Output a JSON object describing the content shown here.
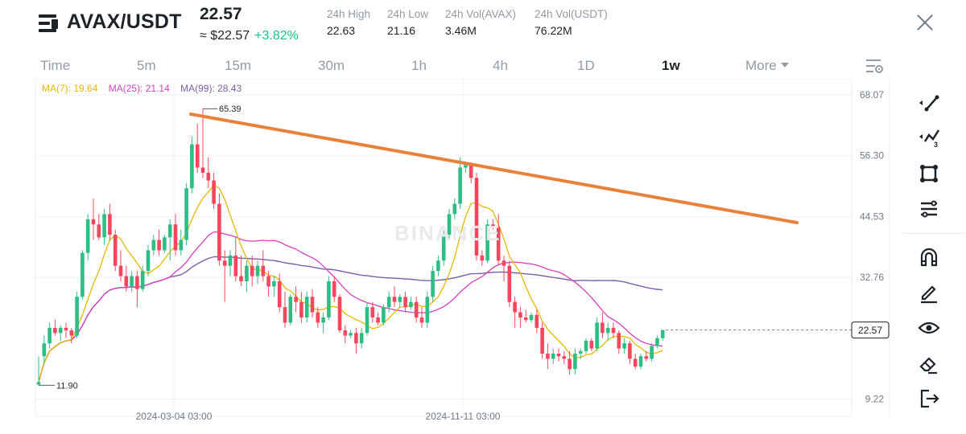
{
  "header": {
    "symbol": "AVAX/USDT",
    "last_price": "22.57",
    "approx_usd": "≈ $22.57",
    "change_pct": "+3.82%",
    "stats": [
      {
        "label": "24h High",
        "value": "22.63"
      },
      {
        "label": "24h Low",
        "value": "21.16"
      },
      {
        "label": "24h Vol(AVAX)",
        "value": "3.46M"
      },
      {
        "label": "24h Vol(USDT)",
        "value": "76.22M"
      }
    ]
  },
  "timeframes": [
    "Time",
    "5m",
    "15m",
    "30m",
    "1h",
    "4h",
    "1D",
    "1w",
    "More"
  ],
  "active_timeframe": "1w",
  "ma_legend": [
    {
      "label": "MA(7): 19.64",
      "color": "#e6b800"
    },
    {
      "label": "MA(25): 21.14",
      "color": "#d63fbf"
    },
    {
      "label": "MA(99): 28.43",
      "color": "#7b5ea7"
    }
  ],
  "toolbar": [
    "line-tool-icon",
    "trend-tool-icon",
    "shape-tool-icon",
    "fib-tool-icon",
    "magnet-icon",
    "pencil-icon",
    "eye-icon",
    "eraser-icon",
    "exit-icon"
  ],
  "watermark": "BINANCE",
  "colors": {
    "up": "#2ebd85",
    "down": "#f6465d",
    "trendline": "#e8823a"
  },
  "chart_data": {
    "type": "candlestick",
    "y_ticks": [
      "68.07",
      "56.30",
      "44.53",
      "32.76",
      "22.57",
      "9.22"
    ],
    "ylim": [
      9.22,
      68.07
    ],
    "x_ticks": [
      "2024-03-04 03:00",
      "2024-11-11 03:00"
    ],
    "current_price": "22.57",
    "high_label": "65.39",
    "low_label": "11.90",
    "candles": [
      [
        12.0,
        17.5,
        11.9,
        12.5
      ],
      [
        17.5,
        21.5,
        16.0,
        20.0
      ],
      [
        20.0,
        24.0,
        19.0,
        23.0
      ],
      [
        23.0,
        24.5,
        21.5,
        22.0
      ],
      [
        22.0,
        23.5,
        20.5,
        23.0
      ],
      [
        23.0,
        24.0,
        21.0,
        22.5
      ],
      [
        22.5,
        23.0,
        20.0,
        21.5
      ],
      [
        21.5,
        30.0,
        21.0,
        29.0
      ],
      [
        29.0,
        38.0,
        28.5,
        37.5
      ],
      [
        37.5,
        45.0,
        36.0,
        44.0
      ],
      [
        44.0,
        48.0,
        40.0,
        43.0
      ],
      [
        43.0,
        45.0,
        40.0,
        40.5
      ],
      [
        40.5,
        46.0,
        39.0,
        45.0
      ],
      [
        45.0,
        47.0,
        40.0,
        41.0
      ],
      [
        41.0,
        42.0,
        34.0,
        35.0
      ],
      [
        35.0,
        38.0,
        32.0,
        33.0
      ],
      [
        33.0,
        35.0,
        30.0,
        31.0
      ],
      [
        31.0,
        34.0,
        30.0,
        33.0
      ],
      [
        33.0,
        34.0,
        27.0,
        30.5
      ],
      [
        30.5,
        35.0,
        30.0,
        34.0
      ],
      [
        34.0,
        39.0,
        33.0,
        38.0
      ],
      [
        38.0,
        41.0,
        37.0,
        40.0
      ],
      [
        40.0,
        42.0,
        37.0,
        38.0
      ],
      [
        38.0,
        41.0,
        37.5,
        40.5
      ],
      [
        40.5,
        44.0,
        36.0,
        43.0
      ],
      [
        43.0,
        45.0,
        37.0,
        38.0
      ],
      [
        38.0,
        42.0,
        37.0,
        40.0
      ],
      [
        40.0,
        51.0,
        39.0,
        50.0
      ],
      [
        50.0,
        60.0,
        49.0,
        58.5
      ],
      [
        58.5,
        62.5,
        53.0,
        54.0
      ],
      [
        54.0,
        65.39,
        52.0,
        53.0
      ],
      [
        53.0,
        56.0,
        50.0,
        51.5
      ],
      [
        51.5,
        53.0,
        46.0,
        47.0
      ],
      [
        47.0,
        49.0,
        35.0,
        36.0
      ],
      [
        36.0,
        38.0,
        28.0,
        35.0
      ],
      [
        35.0,
        38.0,
        33.0,
        37.0
      ],
      [
        37.0,
        40.5,
        32.0,
        33.0
      ],
      [
        33.0,
        37.0,
        31.0,
        32.0
      ],
      [
        32.0,
        36.0,
        30.0,
        35.0
      ],
      [
        35.0,
        37.0,
        31.0,
        33.0
      ],
      [
        33.0,
        36.0,
        31.5,
        35.0
      ],
      [
        35.0,
        38.0,
        32.0,
        33.0
      ],
      [
        33.0,
        34.0,
        29.0,
        31.0
      ],
      [
        31.0,
        33.0,
        29.0,
        32.0
      ],
      [
        32.0,
        33.5,
        26.0,
        27.0
      ],
      [
        27.0,
        30.0,
        23.0,
        24.0
      ],
      [
        24.0,
        29.5,
        23.5,
        29.0
      ],
      [
        29.0,
        31.0,
        26.0,
        28.0
      ],
      [
        28.0,
        30.0,
        24.0,
        25.0
      ],
      [
        25.0,
        30.0,
        24.0,
        29.0
      ],
      [
        29.0,
        30.5,
        25.0,
        26.0
      ],
      [
        26.0,
        27.0,
        23.0,
        24.0
      ],
      [
        24.0,
        26.0,
        22.0,
        25.0
      ],
      [
        25.0,
        33.0,
        24.5,
        32.0
      ],
      [
        32.0,
        33.0,
        28.0,
        29.0
      ],
      [
        29.0,
        29.5,
        22.0,
        22.5
      ],
      [
        22.5,
        23.5,
        20.0,
        21.5
      ],
      [
        21.5,
        22.5,
        21.0,
        22.0
      ],
      [
        22.0,
        23.0,
        18.0,
        20.0
      ],
      [
        20.0,
        23.0,
        19.0,
        22.0
      ],
      [
        22.0,
        28.0,
        21.5,
        27.0
      ],
      [
        27.0,
        28.0,
        24.0,
        25.0
      ],
      [
        25.0,
        26.0,
        23.5,
        24.0
      ],
      [
        24.0,
        27.5,
        23.5,
        27.0
      ],
      [
        27.0,
        30.0,
        26.0,
        29.0
      ],
      [
        29.0,
        31.0,
        27.0,
        28.0
      ],
      [
        28.0,
        29.5,
        27.0,
        29.0
      ],
      [
        29.0,
        30.0,
        26.0,
        27.0
      ],
      [
        27.0,
        29.0,
        26.5,
        28.0
      ],
      [
        28.0,
        29.0,
        24.0,
        25.0
      ],
      [
        25.0,
        27.0,
        23.0,
        24.0
      ],
      [
        24.0,
        30.0,
        23.0,
        29.0
      ],
      [
        29.0,
        35.0,
        28.0,
        34.0
      ],
      [
        34.0,
        37.0,
        33.0,
        36.0
      ],
      [
        36.0,
        42.0,
        35.0,
        41.0
      ],
      [
        41.0,
        46.0,
        40.0,
        45.0
      ],
      [
        45.0,
        48.0,
        44.0,
        47.0
      ],
      [
        47.0,
        56.0,
        46.0,
        54.0
      ],
      [
        54.0,
        55.0,
        53.0,
        54.5
      ],
      [
        54.5,
        55.0,
        51.0,
        52.0
      ],
      [
        52.0,
        53.0,
        36.0,
        37.0
      ],
      [
        37.0,
        38.0,
        35.0,
        36.0
      ],
      [
        36.0,
        44.0,
        35.5,
        43.0
      ],
      [
        43.0,
        44.0,
        42.0,
        42.5
      ],
      [
        42.5,
        45.0,
        35.0,
        36.0
      ],
      [
        36.0,
        37.0,
        32.0,
        35.0
      ],
      [
        35.0,
        36.0,
        27.0,
        28.0
      ],
      [
        28.0,
        29.0,
        23.0,
        26.0
      ],
      [
        26.0,
        27.0,
        23.0,
        25.0
      ],
      [
        25.0,
        26.5,
        24.0,
        24.5
      ],
      [
        24.5,
        26.0,
        24.0,
        25.5
      ],
      [
        25.5,
        26.5,
        22.0,
        23.0
      ],
      [
        23.0,
        24.0,
        17.0,
        18.0
      ],
      [
        18.0,
        20.0,
        15.0,
        17.0
      ],
      [
        17.0,
        19.0,
        16.0,
        18.0
      ],
      [
        18.0,
        19.0,
        16.5,
        17.5
      ],
      [
        17.5,
        18.5,
        16.0,
        17.0
      ],
      [
        17.0,
        18.5,
        14.0,
        15.0
      ],
      [
        15.0,
        19.0,
        14.0,
        18.0
      ],
      [
        18.0,
        19.0,
        17.0,
        18.5
      ],
      [
        18.5,
        21.0,
        18.0,
        20.5
      ],
      [
        20.5,
        21.0,
        18.5,
        19.0
      ],
      [
        19.0,
        25.0,
        18.5,
        24.0
      ],
      [
        24.0,
        26.0,
        21.0,
        22.0
      ],
      [
        22.0,
        24.0,
        20.5,
        23.0
      ],
      [
        23.0,
        24.0,
        21.0,
        22.0
      ],
      [
        22.0,
        22.5,
        18.0,
        19.0
      ],
      [
        19.0,
        21.0,
        18.0,
        20.0
      ],
      [
        20.0,
        20.5,
        16.0,
        17.0
      ],
      [
        17.0,
        18.0,
        15.0,
        15.5
      ],
      [
        15.5,
        18.0,
        15.0,
        17.5
      ],
      [
        17.5,
        18.5,
        16.5,
        17.0
      ],
      [
        17.0,
        20.0,
        16.5,
        19.5
      ],
      [
        19.5,
        21.5,
        19.0,
        21.0
      ],
      [
        21.0,
        22.63,
        20.5,
        22.57
      ]
    ]
  }
}
